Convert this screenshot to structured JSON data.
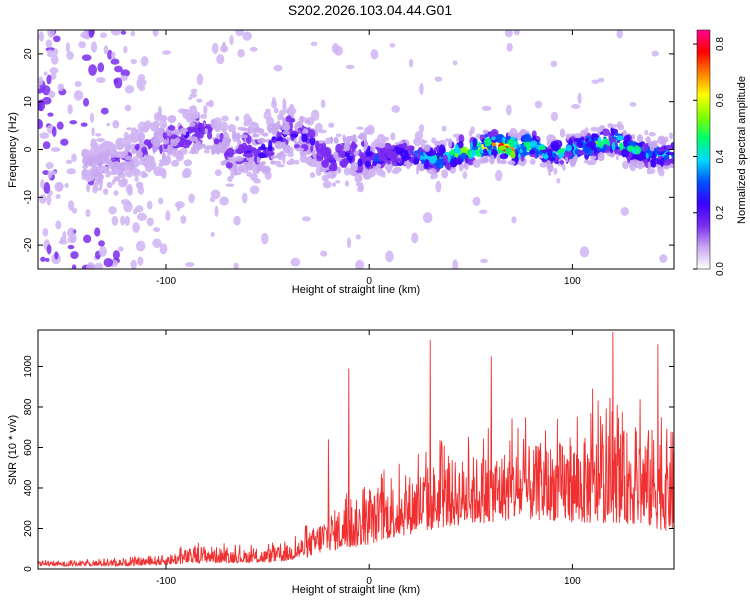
{
  "title": "S202.2026.103.04.44.G01",
  "chart_data": [
    {
      "type": "heatmap",
      "xlabel": "Height of straight line (km)",
      "ylabel": "Frequency (Hz)",
      "xlim": [
        -163,
        150
      ],
      "ylim": [
        -25,
        25
      ],
      "xticks": [
        -100,
        0,
        100
      ],
      "yticks": [
        -20,
        -10,
        0,
        10,
        20
      ],
      "colorbar": {
        "label": "Normalized spectral amplitude",
        "range": [
          0,
          0.85
        ],
        "ticks": [
          "0.0",
          "0.2",
          "0.4",
          "0.6",
          "0.8"
        ],
        "tick_values": [
          0.0,
          0.2,
          0.4,
          0.6,
          0.8
        ],
        "colors": [
          "#ffffff",
          "#c8a8f0",
          "#7a2cf0",
          "#3a00ff",
          "#0050ff",
          "#00d8ff",
          "#00ff70",
          "#80ff00",
          "#ffff00",
          "#ff8000",
          "#ff0000",
          "#ff0090"
        ]
      },
      "ridge": {
        "x": [
          -130,
          -115,
          -100,
          -90,
          -80,
          -70,
          -60,
          -50,
          -40,
          -30,
          -20,
          -10,
          0,
          10,
          20,
          30,
          40,
          50,
          60,
          70,
          80,
          90,
          100,
          110,
          120,
          130,
          140,
          150
        ],
        "freq": [
          -3,
          -1,
          2,
          3,
          5,
          -1,
          0,
          0,
          4,
          2,
          -2,
          -1,
          -2,
          -1,
          -1,
          -2,
          -1,
          0,
          1,
          0,
          1,
          -1,
          0,
          1,
          2,
          0,
          -1,
          -1
        ],
        "amplitude": [
          0.12,
          0.15,
          0.18,
          0.2,
          0.22,
          0.2,
          0.22,
          0.24,
          0.25,
          0.22,
          0.22,
          0.25,
          0.3,
          0.32,
          0.35,
          0.45,
          0.55,
          0.6,
          0.7,
          0.82,
          0.55,
          0.45,
          0.45,
          0.5,
          0.55,
          0.45,
          0.42,
          0.4
        ]
      }
    },
    {
      "type": "line",
      "xlabel": "Height of straight line (km)",
      "ylabel": "SNR (10 * v/v)",
      "xlim": [
        -163,
        150
      ],
      "ylim": [
        0,
        1180
      ],
      "xticks": [
        -100,
        0,
        100
      ],
      "yticks": [
        0,
        200,
        400,
        600,
        800,
        1000
      ],
      "color": "#f03030",
      "envelope": {
        "x": [
          -163,
          -140,
          -120,
          -100,
          -90,
          -80,
          -70,
          -60,
          -50,
          -40,
          -30,
          -20,
          -10,
          0,
          10,
          20,
          30,
          40,
          50,
          60,
          70,
          80,
          90,
          100,
          110,
          120,
          130,
          140,
          150
        ],
        "low": [
          15,
          15,
          15,
          20,
          25,
          30,
          30,
          30,
          30,
          40,
          60,
          90,
          100,
          120,
          150,
          170,
          190,
          210,
          220,
          230,
          240,
          240,
          240,
          230,
          220,
          230,
          220,
          200,
          180
        ],
        "high": [
          35,
          40,
          50,
          70,
          100,
          120,
          100,
          95,
          100,
          120,
          180,
          280,
          330,
          370,
          420,
          470,
          520,
          540,
          560,
          580,
          600,
          610,
          620,
          640,
          660,
          680,
          690,
          700,
          690
        ]
      },
      "spikes": [
        {
          "x": -20,
          "y": 640
        },
        {
          "x": -10,
          "y": 990
        },
        {
          "x": 30,
          "y": 1130
        },
        {
          "x": 60,
          "y": 1050
        },
        {
          "x": 110,
          "y": 890
        },
        {
          "x": 120,
          "y": 1170
        },
        {
          "x": 142,
          "y": 1110
        }
      ]
    }
  ]
}
